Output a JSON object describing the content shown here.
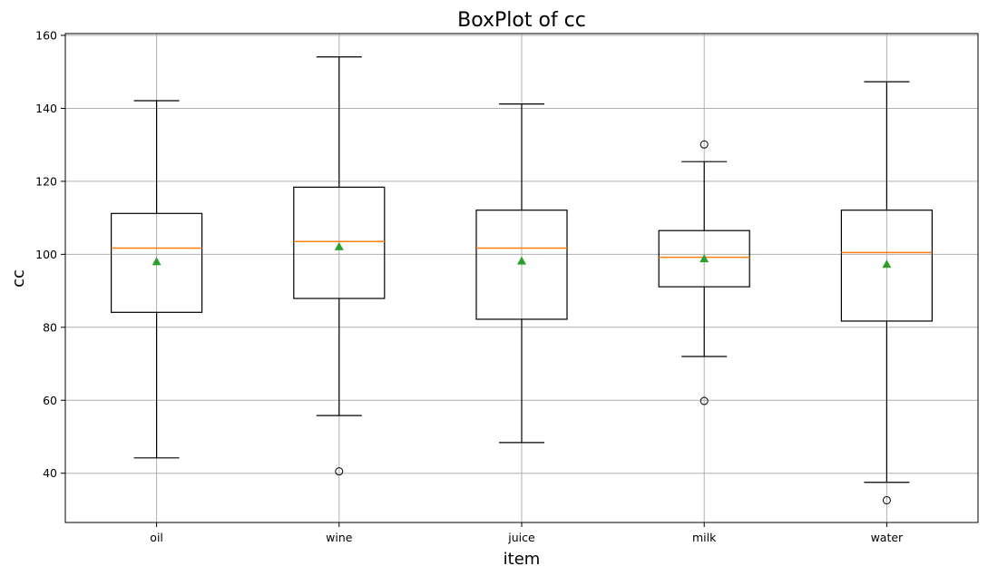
{
  "chart_data": {
    "type": "boxplot",
    "title": "BoxPlot of cc",
    "xlabel": "item",
    "ylabel": "cc",
    "ylim": [
      26.5,
      160.5
    ],
    "yticks": [
      40,
      60,
      80,
      100,
      120,
      140,
      160
    ],
    "grid": true,
    "categories": [
      "oil",
      "wine",
      "juice",
      "milk",
      "water"
    ],
    "boxes": [
      {
        "whisker_low": 44.2,
        "q1": 84.1,
        "median": 101.7,
        "q3": 111.2,
        "whisker_high": 142.1,
        "mean": 98.0,
        "outliers": []
      },
      {
        "whisker_low": 55.8,
        "q1": 87.9,
        "median": 103.5,
        "q3": 118.4,
        "whisker_high": 154.1,
        "mean": 102.1,
        "outliers": [
          40.5
        ]
      },
      {
        "whisker_low": 48.4,
        "q1": 82.2,
        "median": 101.7,
        "q3": 112.1,
        "whisker_high": 141.2,
        "mean": 98.2,
        "outliers": []
      },
      {
        "whisker_low": 72.0,
        "q1": 91.1,
        "median": 99.2,
        "q3": 106.5,
        "whisker_high": 125.4,
        "mean": 98.8,
        "outliers": [
          59.8,
          130.1
        ]
      },
      {
        "whisker_low": 37.5,
        "q1": 81.7,
        "median": 100.5,
        "q3": 112.1,
        "whisker_high": 147.3,
        "mean": 97.3,
        "outliers": [
          32.6
        ]
      }
    ],
    "colors": {
      "box": "#000000",
      "median": "#ff7f0e",
      "mean": "#2ca02c",
      "grid": "#b0b0b0"
    }
  }
}
